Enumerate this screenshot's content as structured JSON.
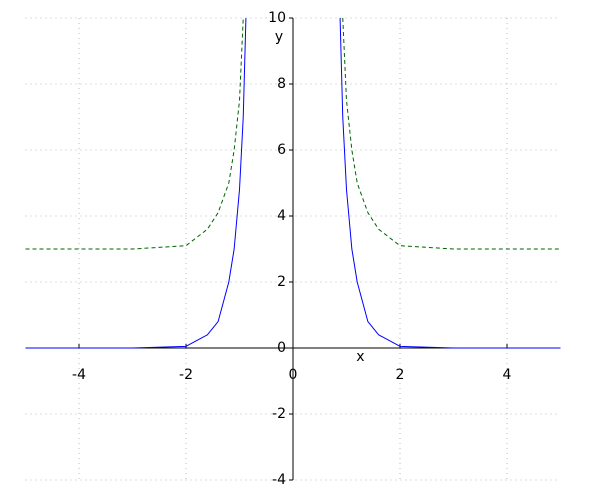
{
  "chart_data": {
    "type": "line",
    "x_label": "x",
    "y_label": "y",
    "x": [
      -5,
      -4,
      -3,
      -2,
      -1.6,
      -1.4,
      -1.2,
      -1.1,
      -1.0,
      -0.93,
      -0.88,
      0,
      0.88,
      0.93,
      1.0,
      1.1,
      1.2,
      1.4,
      1.6,
      2,
      3,
      4,
      5
    ],
    "series": [
      {
        "color": "#0000ff",
        "linestyle": "solid",
        "values": [
          0,
          0,
          0,
          0.05,
          0.4,
          0.8,
          2,
          3,
          4.8,
          7,
          10,
          null,
          10,
          7,
          4.8,
          3,
          2,
          0.8,
          0.4,
          0.05,
          0,
          0,
          0
        ]
      },
      {
        "color": "#006400",
        "linestyle": "dashed",
        "values": [
          3,
          3,
          3,
          3.1,
          3.6,
          4.1,
          5,
          6,
          7.5,
          10,
          null,
          null,
          null,
          10,
          7.5,
          6,
          5,
          4.1,
          3.6,
          3.1,
          3,
          3,
          3
        ]
      }
    ],
    "xlim": [
      -5,
      5
    ],
    "ylim": [
      -4,
      10
    ],
    "xticks": [
      -4,
      -2,
      0,
      2,
      4
    ],
    "yticks": [
      -4,
      -2,
      0,
      2,
      4,
      6,
      8,
      10
    ],
    "grid": true
  }
}
